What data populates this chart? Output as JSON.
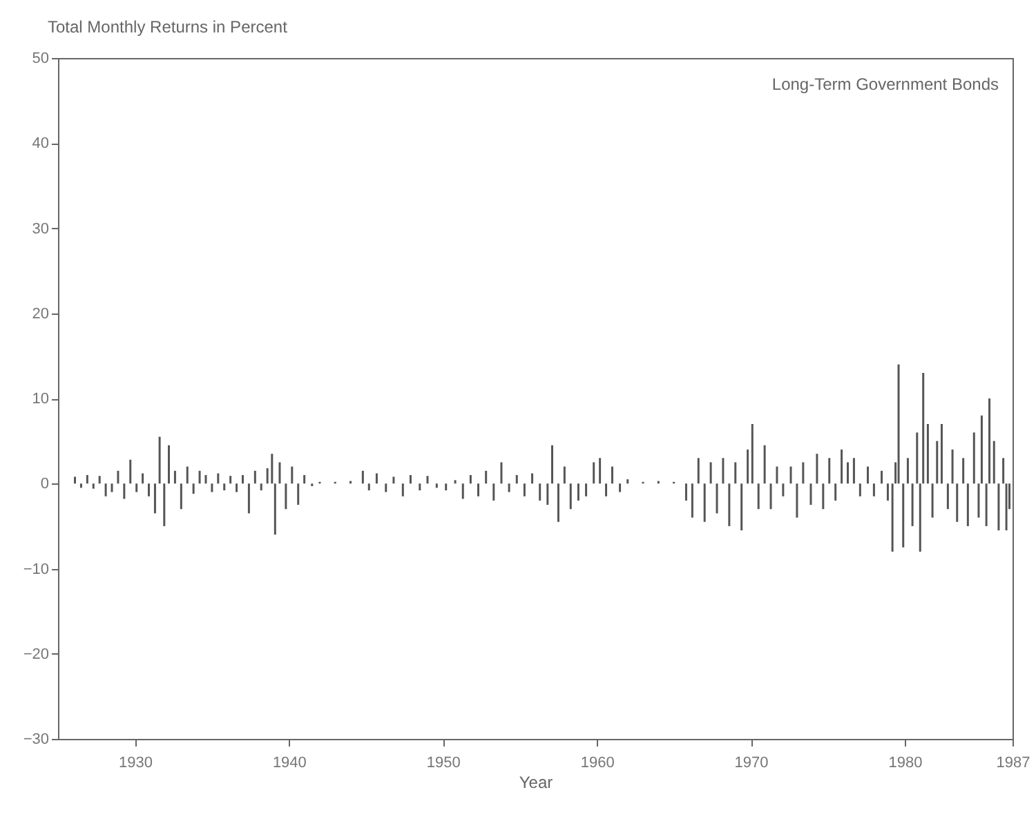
{
  "chart_data": {
    "type": "bar",
    "ylabel": "Total Monthly Returns in Percent",
    "xlabel": "Year",
    "annotations": [
      "Long-Term Government Bonds"
    ],
    "x": [
      1926.1,
      1926.5,
      1926.9,
      1927.3,
      1927.7,
      1928.1,
      1928.5,
      1928.9,
      1929.3,
      1929.7,
      1930.1,
      1930.5,
      1930.9,
      1931.3,
      1931.6,
      1931.9,
      1932.2,
      1932.6,
      1933.0,
      1933.4,
      1933.8,
      1934.2,
      1934.6,
      1935.0,
      1935.4,
      1935.8,
      1936.2,
      1936.6,
      1937.0,
      1937.4,
      1937.8,
      1938.2,
      1938.6,
      1938.9,
      1939.1,
      1939.4,
      1939.8,
      1940.2,
      1940.6,
      1941.0,
      1941.5,
      1942.0,
      1943.0,
      1944.0,
      1944.8,
      1945.2,
      1945.7,
      1946.3,
      1946.8,
      1947.4,
      1947.9,
      1948.5,
      1949.0,
      1949.6,
      1950.2,
      1950.8,
      1951.3,
      1951.8,
      1952.3,
      1952.8,
      1953.3,
      1953.8,
      1954.3,
      1954.8,
      1955.3,
      1955.8,
      1956.3,
      1956.8,
      1957.1,
      1957.5,
      1957.9,
      1958.3,
      1958.8,
      1959.3,
      1959.8,
      1960.2,
      1960.6,
      1961.0,
      1961.5,
      1962.0,
      1963.0,
      1964.0,
      1965.0,
      1965.8,
      1966.2,
      1966.6,
      1967.0,
      1967.4,
      1967.8,
      1968.2,
      1968.6,
      1969.0,
      1969.4,
      1969.8,
      1970.1,
      1970.5,
      1970.9,
      1971.3,
      1971.7,
      1972.1,
      1972.6,
      1973.0,
      1973.4,
      1973.9,
      1974.3,
      1974.7,
      1975.1,
      1975.5,
      1975.9,
      1976.3,
      1976.7,
      1977.1,
      1977.6,
      1978.0,
      1978.5,
      1978.9,
      1979.2,
      1979.4,
      1979.6,
      1979.9,
      1980.2,
      1980.5,
      1980.8,
      1981.0,
      1981.2,
      1981.5,
      1981.8,
      1982.1,
      1982.4,
      1982.8,
      1983.1,
      1983.4,
      1983.8,
      1984.1,
      1984.5,
      1984.8,
      1985.0,
      1985.3,
      1985.5,
      1985.8,
      1986.1,
      1986.4,
      1986.6,
      1986.8
    ],
    "series": [
      {
        "color": "#555555",
        "values": [
          0.8,
          -0.5,
          1.0,
          -0.6,
          0.9,
          -1.5,
          -1.0,
          1.5,
          -1.8,
          2.8,
          -1.0,
          1.2,
          -1.5,
          -3.5,
          5.5,
          -5.0,
          4.5,
          1.5,
          -3.0,
          2.0,
          -1.2,
          1.5,
          1.0,
          -1.0,
          1.2,
          -0.8,
          0.9,
          -1.0,
          1.0,
          -3.5,
          1.5,
          -0.8,
          1.8,
          3.5,
          -6.0,
          2.5,
          -3.0,
          2.0,
          -2.5,
          1.0,
          -0.3,
          0.2,
          0.2,
          0.3,
          1.5,
          -0.8,
          1.2,
          -1.0,
          0.8,
          -1.5,
          1.0,
          -0.8,
          0.9,
          -0.5,
          -0.8,
          0.4,
          -1.8,
          1.0,
          -1.5,
          1.5,
          -2.0,
          2.5,
          -1.0,
          1.0,
          -1.5,
          1.2,
          -2.0,
          -2.5,
          4.5,
          -4.5,
          2.0,
          -3.0,
          -2.0,
          -1.5,
          2.5,
          3.0,
          -1.5,
          2.0,
          -1.0,
          0.5,
          0.2,
          0.3,
          0.2,
          -2.0,
          -4.0,
          3.0,
          -4.5,
          2.5,
          -3.5,
          3.0,
          -5.0,
          2.5,
          -5.5,
          4.0,
          7.0,
          -3.0,
          4.5,
          -3.0,
          2.0,
          -1.5,
          2.0,
          -4.0,
          2.5,
          -2.5,
          3.5,
          -3.0,
          3.0,
          -2.0,
          4.0,
          2.5,
          3.0,
          -1.5,
          2.0,
          -1.5,
          1.5,
          -2.0,
          -8.0,
          2.5,
          14.0,
          -7.5,
          3.0,
          -5.0,
          6.0,
          -8.0,
          13.0,
          7.0,
          -4.0,
          5.0,
          7.0,
          -3.0,
          4.0,
          -4.5,
          3.0,
          -5.0,
          6.0,
          -4.0,
          8.0,
          -5.0,
          10.0,
          5.0,
          -5.5,
          3.0,
          -5.5,
          -3.0
        ]
      }
    ],
    "xlim": [
      1925,
      1987
    ],
    "xticks": [
      1930,
      1940,
      1950,
      1960,
      1970,
      1980,
      1987
    ],
    "ylim": [
      -30,
      50
    ],
    "yticks": [
      -30,
      -20,
      -10,
      0,
      10,
      20,
      30,
      40,
      50
    ]
  }
}
